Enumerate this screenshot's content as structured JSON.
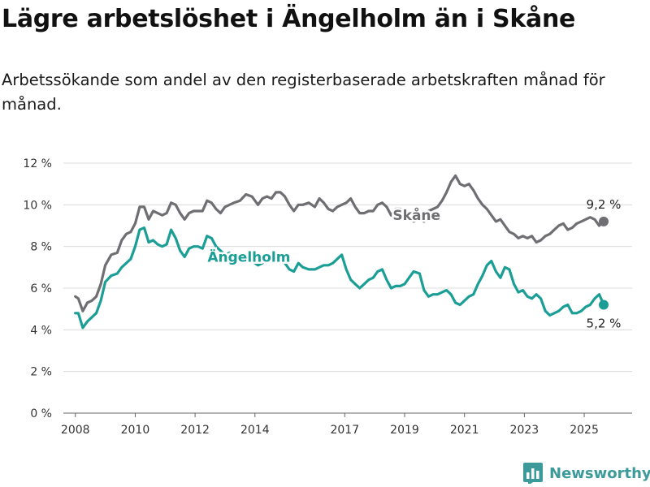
{
  "title": "Lägre arbetslöshet i Ängelholm än i Skåne",
  "subtitle": "Arbetssökande som andel av den registerbaserade arbetskraften månad för månad.",
  "brand": {
    "name": "Newsworthy",
    "icon": "bar-chart-logo-icon"
  },
  "chart_data": {
    "type": "line",
    "title": "Lägre arbetslöshet i Ängelholm än i Skåne",
    "ylim": [
      0,
      12
    ],
    "xlim": [
      2007.6,
      2026.6
    ],
    "y_ticks": [
      0,
      2,
      4,
      6,
      8,
      10,
      12
    ],
    "y_tick_labels": [
      "0 %",
      "2 %",
      "4 %",
      "6 %",
      "8 %",
      "10 %",
      "12 %"
    ],
    "x_ticks": [
      2008,
      2010,
      2012,
      2014,
      2017,
      2019,
      2021,
      2023,
      2025
    ],
    "x_tick_labels": [
      "2008",
      "2010",
      "2012",
      "2014",
      "2017",
      "2019",
      "2021",
      "2023",
      "2025"
    ],
    "grid": "horizontal",
    "series": [
      {
        "name": "Skåne",
        "color": "#6e6e73",
        "end_label": "9,2 %",
        "x": [
          2008.0,
          2008.1,
          2008.25,
          2008.4,
          2008.55,
          2008.7,
          2008.85,
          2009.0,
          2009.2,
          2009.4,
          2009.55,
          2009.7,
          2009.85,
          2010.0,
          2010.15,
          2010.3,
          2010.45,
          2010.6,
          2010.75,
          2010.9,
          2011.05,
          2011.2,
          2011.35,
          2011.5,
          2011.65,
          2011.8,
          2011.95,
          2012.1,
          2012.25,
          2012.4,
          2012.55,
          2012.7,
          2012.85,
          2013.0,
          2013.15,
          2013.3,
          2013.5,
          2013.7,
          2013.9,
          2014.1,
          2014.25,
          2014.4,
          2014.55,
          2014.7,
          2014.85,
          2015.0,
          2015.15,
          2015.3,
          2015.45,
          2015.6,
          2015.8,
          2016.0,
          2016.15,
          2016.3,
          2016.45,
          2016.6,
          2016.75,
          2016.9,
          2017.05,
          2017.2,
          2017.35,
          2017.5,
          2017.65,
          2017.8,
          2017.95,
          2018.1,
          2018.25,
          2018.4,
          2018.55,
          2018.7,
          2018.85,
          2019.0,
          2019.15,
          2019.3,
          2019.5,
          2019.65,
          2019.8,
          2019.95,
          2020.1,
          2020.25,
          2020.4,
          2020.55,
          2020.7,
          2020.85,
          2021.0,
          2021.15,
          2021.3,
          2021.45,
          2021.6,
          2021.75,
          2021.9,
          2022.05,
          2022.2,
          2022.35,
          2022.5,
          2022.65,
          2022.8,
          2022.95,
          2023.1,
          2023.25,
          2023.4,
          2023.55,
          2023.7,
          2023.85,
          2024.0,
          2024.15,
          2024.3,
          2024.45,
          2024.6,
          2024.75,
          2024.9,
          2025.05,
          2025.2,
          2025.35,
          2025.5,
          2025.65
        ],
        "values": [
          5.6,
          5.5,
          4.9,
          5.3,
          5.4,
          5.6,
          6.2,
          7.1,
          7.6,
          7.7,
          8.3,
          8.6,
          8.7,
          9.1,
          9.9,
          9.9,
          9.3,
          9.7,
          9.6,
          9.5,
          9.6,
          10.1,
          10.0,
          9.6,
          9.3,
          9.6,
          9.7,
          9.7,
          9.7,
          10.2,
          10.1,
          9.8,
          9.6,
          9.9,
          10.0,
          10.1,
          10.2,
          10.5,
          10.4,
          10.0,
          10.3,
          10.4,
          10.3,
          10.6,
          10.6,
          10.4,
          10.0,
          9.7,
          10.0,
          10.0,
          10.1,
          9.9,
          10.3,
          10.1,
          9.8,
          9.7,
          9.9,
          10.0,
          10.1,
          10.3,
          9.9,
          9.6,
          9.6,
          9.7,
          9.7,
          10.0,
          10.1,
          9.9,
          9.5,
          9.8,
          9.8,
          9.7,
          9.5,
          9.2,
          9.3,
          9.2,
          9.7,
          9.8,
          9.9,
          10.2,
          10.6,
          11.1,
          11.4,
          11.0,
          10.9,
          11.0,
          10.7,
          10.3,
          10.0,
          9.8,
          9.5,
          9.2,
          9.3,
          9.0,
          8.7,
          8.6,
          8.4,
          8.5,
          8.4,
          8.5,
          8.2,
          8.3,
          8.5,
          8.6,
          8.8,
          9.0,
          9.1,
          8.8,
          8.9,
          9.1,
          9.2,
          9.3,
          9.4,
          9.3,
          9.0,
          9.2
        ]
      },
      {
        "name": "Ängelholm",
        "color": "#1a9e96",
        "end_label": "5,2 %",
        "x": [
          2008.0,
          2008.1,
          2008.25,
          2008.4,
          2008.55,
          2008.7,
          2008.85,
          2009.0,
          2009.2,
          2009.4,
          2009.55,
          2009.7,
          2009.85,
          2010.0,
          2010.15,
          2010.3,
          2010.45,
          2010.6,
          2010.75,
          2010.9,
          2011.05,
          2011.2,
          2011.35,
          2011.5,
          2011.65,
          2011.8,
          2011.95,
          2012.1,
          2012.25,
          2012.4,
          2012.55,
          2012.7,
          2012.85,
          2013.0,
          2013.15,
          2013.3,
          2013.5,
          2013.7,
          2013.9,
          2014.1,
          2014.25,
          2014.4,
          2014.55,
          2014.7,
          2014.85,
          2015.0,
          2015.15,
          2015.3,
          2015.45,
          2015.6,
          2015.8,
          2016.0,
          2016.15,
          2016.3,
          2016.45,
          2016.6,
          2016.75,
          2016.9,
          2017.05,
          2017.2,
          2017.35,
          2017.5,
          2017.65,
          2017.8,
          2017.95,
          2018.1,
          2018.25,
          2018.4,
          2018.55,
          2018.7,
          2018.85,
          2019.0,
          2019.15,
          2019.3,
          2019.5,
          2019.65,
          2019.8,
          2019.95,
          2020.1,
          2020.25,
          2020.4,
          2020.55,
          2020.7,
          2020.85,
          2021.0,
          2021.15,
          2021.3,
          2021.45,
          2021.6,
          2021.75,
          2021.9,
          2022.05,
          2022.2,
          2022.35,
          2022.5,
          2022.65,
          2022.8,
          2022.95,
          2023.1,
          2023.25,
          2023.4,
          2023.55,
          2023.7,
          2023.85,
          2024.0,
          2024.15,
          2024.3,
          2024.45,
          2024.6,
          2024.75,
          2024.9,
          2025.05,
          2025.2,
          2025.35,
          2025.5,
          2025.65
        ],
        "values": [
          4.8,
          4.8,
          4.1,
          4.4,
          4.6,
          4.8,
          5.4,
          6.3,
          6.6,
          6.7,
          7.0,
          7.2,
          7.4,
          8.0,
          8.8,
          8.9,
          8.2,
          8.3,
          8.1,
          8.0,
          8.1,
          8.8,
          8.4,
          7.8,
          7.5,
          7.9,
          8.0,
          8.0,
          7.9,
          8.5,
          8.4,
          8.0,
          7.8,
          7.6,
          7.7,
          7.5,
          7.3,
          7.5,
          7.3,
          7.1,
          7.2,
          7.4,
          7.3,
          7.4,
          7.3,
          7.2,
          6.9,
          6.8,
          7.2,
          7.0,
          6.9,
          6.9,
          7.0,
          7.1,
          7.1,
          7.2,
          7.4,
          7.6,
          6.9,
          6.4,
          6.2,
          6.0,
          6.2,
          6.4,
          6.5,
          6.8,
          6.9,
          6.4,
          6.0,
          6.1,
          6.1,
          6.2,
          6.5,
          6.8,
          6.7,
          5.9,
          5.6,
          5.7,
          5.7,
          5.8,
          5.9,
          5.7,
          5.3,
          5.2,
          5.4,
          5.6,
          5.7,
          6.2,
          6.6,
          7.1,
          7.3,
          6.8,
          6.5,
          7.0,
          6.9,
          6.2,
          5.8,
          5.9,
          5.6,
          5.5,
          5.7,
          5.5,
          4.9,
          4.7,
          4.8,
          4.9,
          5.1,
          5.2,
          4.8,
          4.8,
          4.9,
          5.1,
          5.2,
          5.5,
          5.7,
          5.2
        ]
      }
    ],
    "inline_labels": [
      {
        "series": "Skåne",
        "text": "Skåne",
        "x": 2019.4,
        "y": 9.5
      },
      {
        "series": "Ängelholm",
        "text": "Ängelholm",
        "x": 2013.8,
        "y": 7.5
      }
    ]
  }
}
